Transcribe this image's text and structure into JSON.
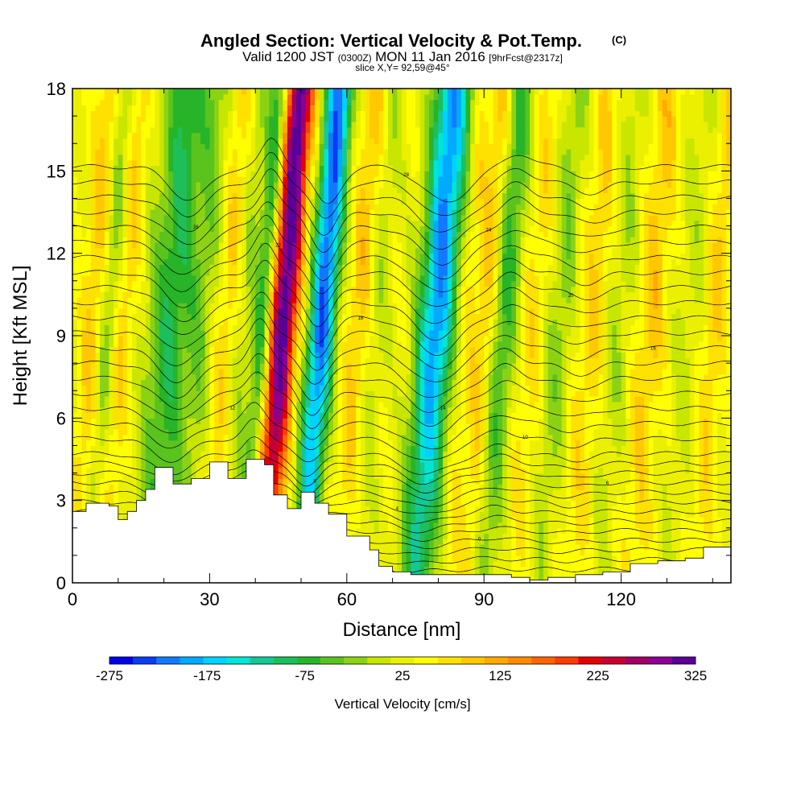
{
  "chart_data": {
    "type": "heatmap",
    "title": "Angled Section: Vertical Velocity & Pot.Temp.",
    "title_suffix": "(C)",
    "subtitle_parts": [
      "Valid 1200 JST",
      "(0300Z)",
      "MON 11 Jan 2016",
      "[9hrFcst@2317z]"
    ],
    "subtitle2": "slice X,Y= 92,59@45°",
    "xlabel": "Distance [nm]",
    "ylabel": "Height [Kft MSL]",
    "xlim": [
      0,
      144
    ],
    "ylim": [
      0,
      18
    ],
    "x_ticks": [
      0,
      30,
      60,
      90,
      120
    ],
    "y_ticks": [
      0,
      3,
      6,
      9,
      12,
      15,
      18
    ],
    "colorbar": {
      "label": "Vertical Velocity [cm/s]",
      "min": -275,
      "max": 325,
      "tick_labels": [
        "-275",
        "-175",
        "-75",
        "25",
        "125",
        "225",
        "325"
      ],
      "colors": [
        "#0000e6",
        "#0a3cf0",
        "#1478ff",
        "#00aaff",
        "#00d2ff",
        "#00e6d2",
        "#14c896",
        "#1ebe5a",
        "#28b428",
        "#5ac31e",
        "#8cd214",
        "#c8e600",
        "#ebf000",
        "#ffff00",
        "#ffe100",
        "#ffc800",
        "#ffaa00",
        "#ff8c00",
        "#ff6400",
        "#ff3c00",
        "#e60000",
        "#c80032",
        "#a00064",
        "#8c0091",
        "#5a0096"
      ]
    },
    "plumes": [
      {
        "x": 3,
        "w": 2.5,
        "v": 60
      },
      {
        "x": 6,
        "w": 2,
        "v": -60
      },
      {
        "x": 10,
        "w": 2,
        "v": 50
      },
      {
        "x": 20,
        "w": 5,
        "v": -120
      },
      {
        "x": 27,
        "w": 3,
        "v": -50
      },
      {
        "x": 32,
        "w": 2.5,
        "v": 50
      },
      {
        "x": 36,
        "w": 2.5,
        "v": -40
      },
      {
        "x": 40,
        "w": 2,
        "v": -120
      },
      {
        "x": 44.5,
        "w": 3,
        "v": 290
      },
      {
        "x": 53,
        "w": 3,
        "v": -260
      },
      {
        "x": 61,
        "w": 3,
        "v": 60
      },
      {
        "x": 65,
        "w": 2.5,
        "v": -40
      },
      {
        "x": 78,
        "w": 4,
        "v": -240
      },
      {
        "x": 85,
        "w": 2.5,
        "v": 40
      },
      {
        "x": 89,
        "w": 2,
        "v": 60
      },
      {
        "x": 93,
        "w": 3,
        "v": -100
      },
      {
        "x": 99,
        "w": 3,
        "v": 40
      },
      {
        "x": 105,
        "w": 3,
        "v": -60
      },
      {
        "x": 112,
        "w": 3,
        "v": 50
      },
      {
        "x": 118,
        "w": 3,
        "v": -40
      },
      {
        "x": 125,
        "w": 3,
        "v": 60
      },
      {
        "x": 133,
        "w": 3,
        "v": -30
      },
      {
        "x": 139,
        "w": 2.5,
        "v": 50
      }
    ],
    "terrain": [
      [
        0,
        2.6
      ],
      [
        3,
        2.9
      ],
      [
        8,
        2.8
      ],
      [
        10,
        2.3
      ],
      [
        12,
        2.6
      ],
      [
        14,
        3.0
      ],
      [
        16,
        3.4
      ],
      [
        18,
        4.2
      ],
      [
        22,
        3.6
      ],
      [
        26,
        3.8
      ],
      [
        30,
        4.4
      ],
      [
        34,
        3.8
      ],
      [
        38,
        4.5
      ],
      [
        42,
        4.3
      ],
      [
        44,
        3.2
      ],
      [
        47,
        2.7
      ],
      [
        50,
        3.3
      ],
      [
        53,
        2.9
      ],
      [
        56,
        2.5
      ],
      [
        60,
        1.7
      ],
      [
        65,
        1.2
      ],
      [
        67,
        0.6
      ],
      [
        70,
        0.4
      ],
      [
        74,
        0.3
      ],
      [
        80,
        0.3
      ],
      [
        86,
        0.3
      ],
      [
        90,
        0.3
      ],
      [
        96,
        0.2
      ],
      [
        100,
        0.1
      ],
      [
        104,
        0.2
      ],
      [
        110,
        0.3
      ],
      [
        116,
        0.4
      ],
      [
        122,
        0.7
      ],
      [
        128,
        0.8
      ],
      [
        134,
        0.9
      ],
      [
        138,
        1.3
      ],
      [
        144,
        1.3
      ]
    ],
    "isentropes": {
      "count": 32,
      "base_height": 0.5,
      "spacing_low": 0.35,
      "spacing_high": 0.55,
      "troughs": [
        {
          "x": 22,
          "w": 6,
          "amp": 1.2
        },
        {
          "x": 40,
          "w": 3,
          "amp": -1.0
        },
        {
          "x": 52,
          "w": 4,
          "amp": 1.4
        },
        {
          "x": 78,
          "w": 7,
          "amp": 1.3
        },
        {
          "x": 94,
          "w": 4,
          "amp": -0.5
        },
        {
          "x": 110,
          "w": 5,
          "amp": 0.4
        }
      ],
      "labels": [
        "-2",
        "0",
        "2",
        "4",
        "6",
        "8",
        "10",
        "12",
        "14",
        "16",
        "18",
        "20",
        "22",
        "24",
        "26",
        "28",
        "30"
      ]
    }
  }
}
